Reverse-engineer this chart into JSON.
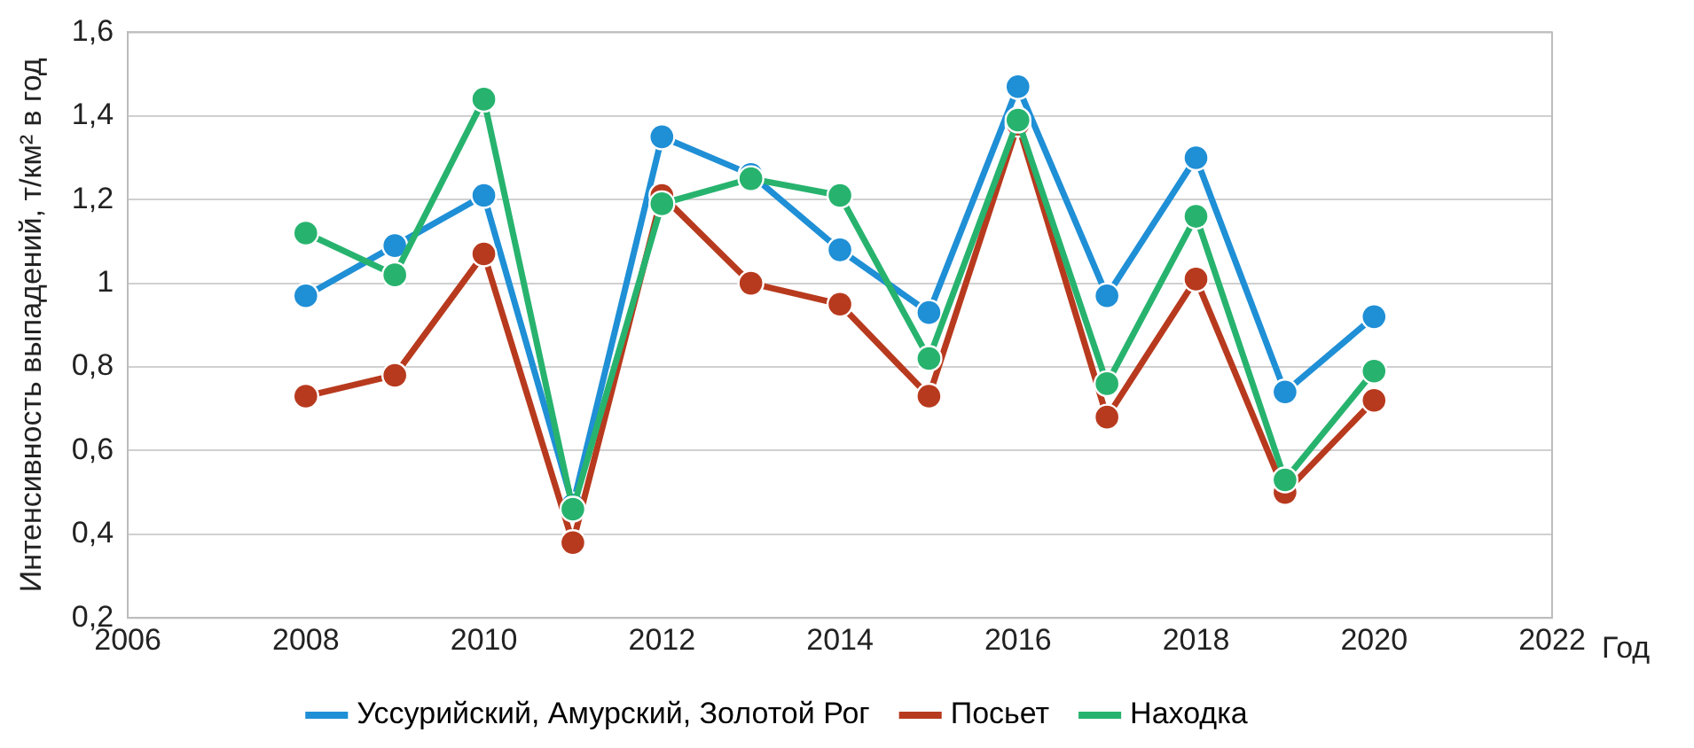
{
  "chart_data": {
    "type": "line",
    "ylabel": "Интенсивность выпадений, т/км² в год",
    "xlabel": "Год",
    "x": [
      2008,
      2009,
      2010,
      2011,
      2012,
      2013,
      2014,
      2015,
      2016,
      2017,
      2018,
      2019,
      2020
    ],
    "series": [
      {
        "name": "Уссурийский, Амурский, Золотой Рог",
        "color": "#1f8fd6",
        "values": [
          0.97,
          1.09,
          1.21,
          0.47,
          1.35,
          1.26,
          1.08,
          0.93,
          1.47,
          0.97,
          1.3,
          0.74,
          0.92
        ]
      },
      {
        "name": "Посьет",
        "color": "#b83a1e",
        "values": [
          0.73,
          0.78,
          1.07,
          0.38,
          1.21,
          1.0,
          0.95,
          0.73,
          1.38,
          0.68,
          1.01,
          0.5,
          0.72
        ]
      },
      {
        "name": "Находка",
        "color": "#27b36e",
        "values": [
          1.12,
          1.02,
          1.44,
          0.46,
          1.19,
          1.25,
          1.21,
          0.82,
          1.39,
          0.76,
          1.16,
          0.53,
          0.79
        ]
      }
    ],
    "xlim": [
      2006,
      2022
    ],
    "xticks": [
      2006,
      2008,
      2010,
      2012,
      2014,
      2016,
      2018,
      2020,
      2022
    ],
    "ylim": [
      0.2,
      1.6
    ],
    "yticks": [
      {
        "value": 0.2,
        "label": "0,2"
      },
      {
        "value": 0.4,
        "label": "0,4"
      },
      {
        "value": 0.6,
        "label": "0,6"
      },
      {
        "value": 0.8,
        "label": "0,8"
      },
      1,
      {
        "value": 1.2,
        "label": "1,2"
      },
      {
        "value": 1.4,
        "label": "1,4"
      },
      {
        "value": 1.6,
        "label": "1,6"
      }
    ],
    "grid": "y",
    "legend": "bottom",
    "marker": "circle",
    "line_style": "solid"
  }
}
